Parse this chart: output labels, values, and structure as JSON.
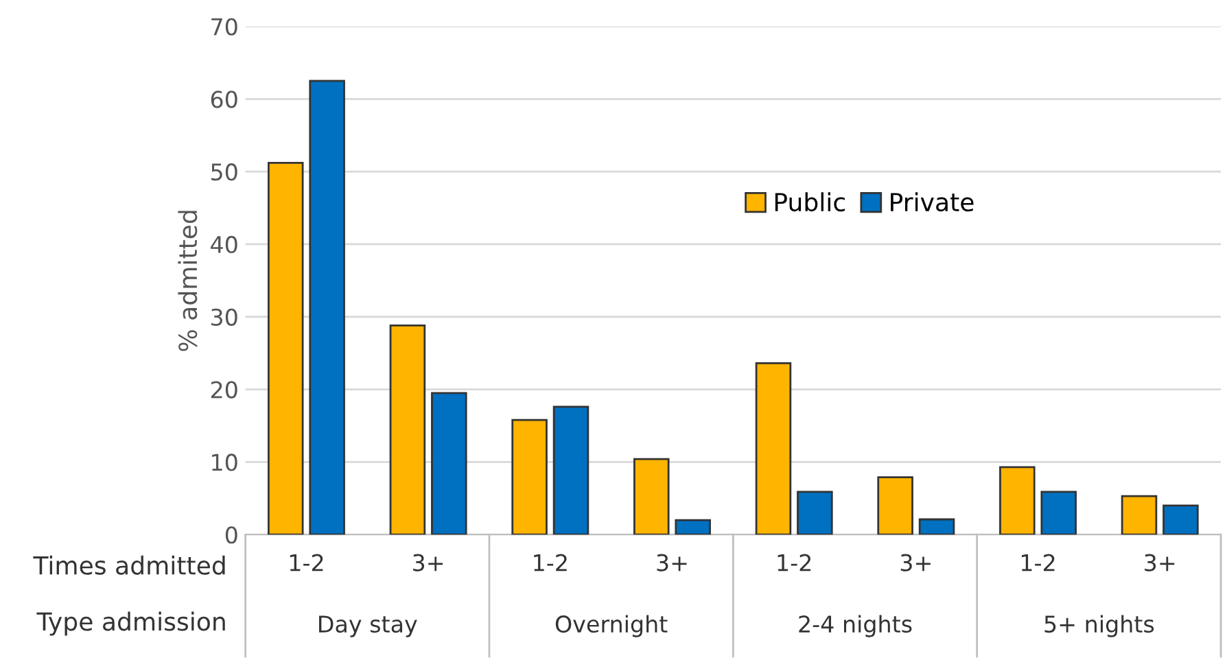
{
  "chart_data": {
    "type": "bar",
    "ylabel": "% admitted",
    "categories": [
      "1-2",
      "3+",
      "1-2",
      "3+",
      "1-2",
      "3+",
      "1-2",
      "3+"
    ],
    "series": [
      {
        "name": "Public",
        "color": "#ffb400",
        "values": [
          51.2,
          28.8,
          15.8,
          10.4,
          23.6,
          7.9,
          9.3,
          5.3
        ]
      },
      {
        "name": "Private",
        "color": "#0070c0",
        "values": [
          62.5,
          19.5,
          17.6,
          2.0,
          5.9,
          2.1,
          5.9,
          4.0
        ]
      }
    ],
    "annotations": [
      "Times admitted",
      "Type admission",
      "Day stay",
      "Overnight",
      "2-4 nights",
      "5+ nights"
    ],
    "ylim": [
      0,
      70
    ],
    "yticks": [
      0,
      10,
      20,
      30,
      40,
      50,
      60,
      70
    ],
    "grid": "y",
    "legend": "center"
  }
}
